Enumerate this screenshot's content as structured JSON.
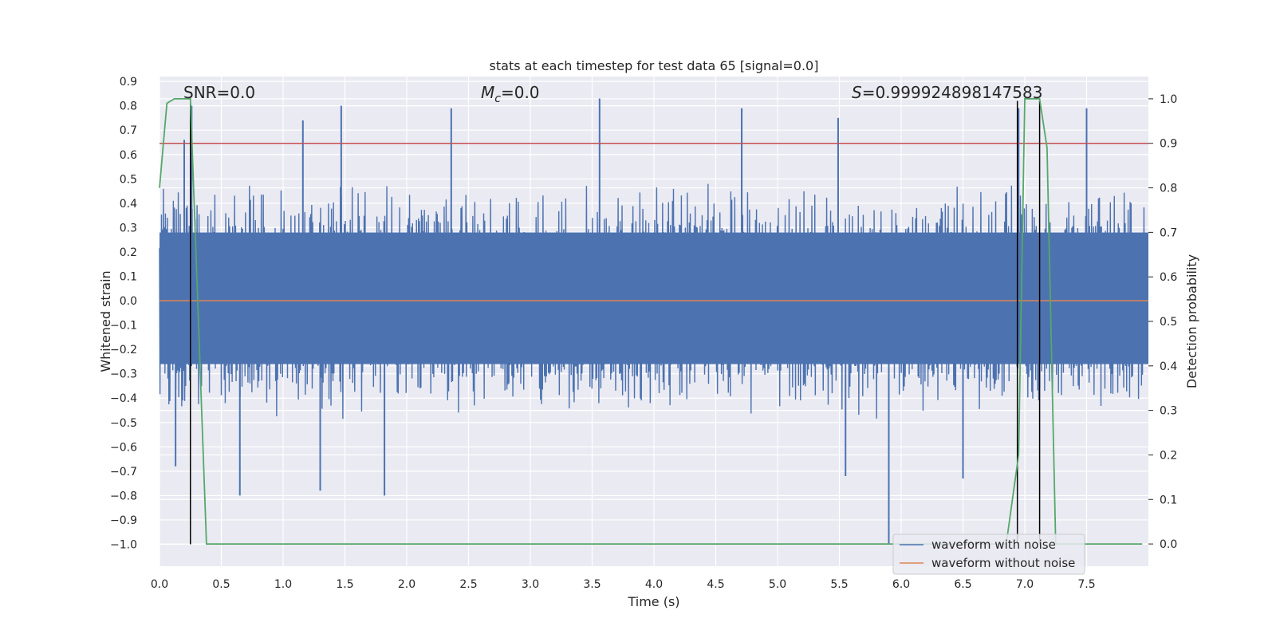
{
  "chart_data": {
    "type": "line",
    "title": "stats at each timestep for test data 65 [signal=0.0]",
    "xlabel": "Time (s)",
    "ylabel": "Whitened strain",
    "y2label": "Detection probability",
    "xlim": [
      0.0,
      8.0
    ],
    "ylim": [
      -1.09,
      0.92
    ],
    "y2lim": [
      -0.05,
      1.05
    ],
    "x_ticks": [
      "0.0",
      "0.5",
      "1.0",
      "1.5",
      "2.0",
      "2.5",
      "3.0",
      "3.5",
      "4.0",
      "4.5",
      "5.0",
      "5.5",
      "6.0",
      "6.5",
      "7.0",
      "7.5"
    ],
    "y_ticks": [
      "0.9",
      "0.8",
      "0.7",
      "0.6",
      "0.5",
      "0.4",
      "0.3",
      "0.2",
      "0.1",
      "0.0",
      "−0.1",
      "−0.2",
      "−0.3",
      "−0.4",
      "−0.5",
      "−0.6",
      "−0.7",
      "−0.8",
      "−0.9",
      "−1.0"
    ],
    "y2_ticks": [
      "0.0",
      "0.1",
      "0.2",
      "0.3",
      "0.4",
      "0.5",
      "0.6",
      "0.7",
      "0.8",
      "0.9",
      "1.0"
    ],
    "grid": true,
    "legend_placement": "lower-right",
    "annotations": {
      "snr": "SNR=0.0",
      "mc_symbol": "M",
      "mc_sub": "c",
      "mc_rest": "=0.0",
      "s_symbol": "S",
      "s_rest": "=0.999924898147583"
    },
    "series": [
      {
        "name": "waveform with noise",
        "color": "#4c72b0",
        "axis": "left",
        "description_range": [
          -1.0,
          0.83
        ],
        "spikes": [
          {
            "x": 0.2,
            "y": 0.66
          },
          {
            "x": 0.26,
            "y": 0.8
          },
          {
            "x": 1.16,
            "y": 0.74
          },
          {
            "x": 1.47,
            "y": 0.8
          },
          {
            "x": 2.36,
            "y": 0.79
          },
          {
            "x": 3.56,
            "y": 0.83
          },
          {
            "x": 4.71,
            "y": 0.79
          },
          {
            "x": 5.49,
            "y": 0.75
          },
          {
            "x": 6.95,
            "y": 0.79
          },
          {
            "x": 7.5,
            "y": 0.79
          },
          {
            "x": 0.65,
            "y": -0.8
          },
          {
            "x": 1.3,
            "y": -0.78
          },
          {
            "x": 1.82,
            "y": -0.8
          },
          {
            "x": 5.9,
            "y": -1.0
          },
          {
            "x": 0.13,
            "y": -0.68
          },
          {
            "x": 5.55,
            "y": -0.72
          },
          {
            "x": 6.5,
            "y": -0.73
          }
        ]
      },
      {
        "name": "waveform without noise",
        "color": "#dd8452",
        "axis": "left",
        "x": [
          0.0,
          8.0
        ],
        "y": [
          0.0,
          0.0
        ]
      },
      {
        "name": "",
        "color": "#55a868",
        "axis": "right",
        "x": [
          0.0,
          0.06,
          0.12,
          0.25,
          0.38,
          6.85,
          6.95,
          7.0,
          7.12,
          7.18,
          7.25,
          7.95
        ],
        "y": [
          0.8,
          0.99,
          1.0,
          1.0,
          0.0,
          0.0,
          0.2,
          1.0,
          1.0,
          0.89,
          0.0,
          0.0
        ]
      }
    ],
    "threshold": {
      "axis": "right",
      "value": 0.9,
      "color": "#c44e52"
    },
    "vertical_lines": [
      {
        "x": 0.25,
        "y_top": 0.81,
        "y_bottom": -1.0
      },
      {
        "x": 6.94,
        "y_top": 0.82,
        "y_bottom": -1.0
      },
      {
        "x": 7.12,
        "y_top": 0.82,
        "y_bottom": -1.0
      }
    ]
  }
}
